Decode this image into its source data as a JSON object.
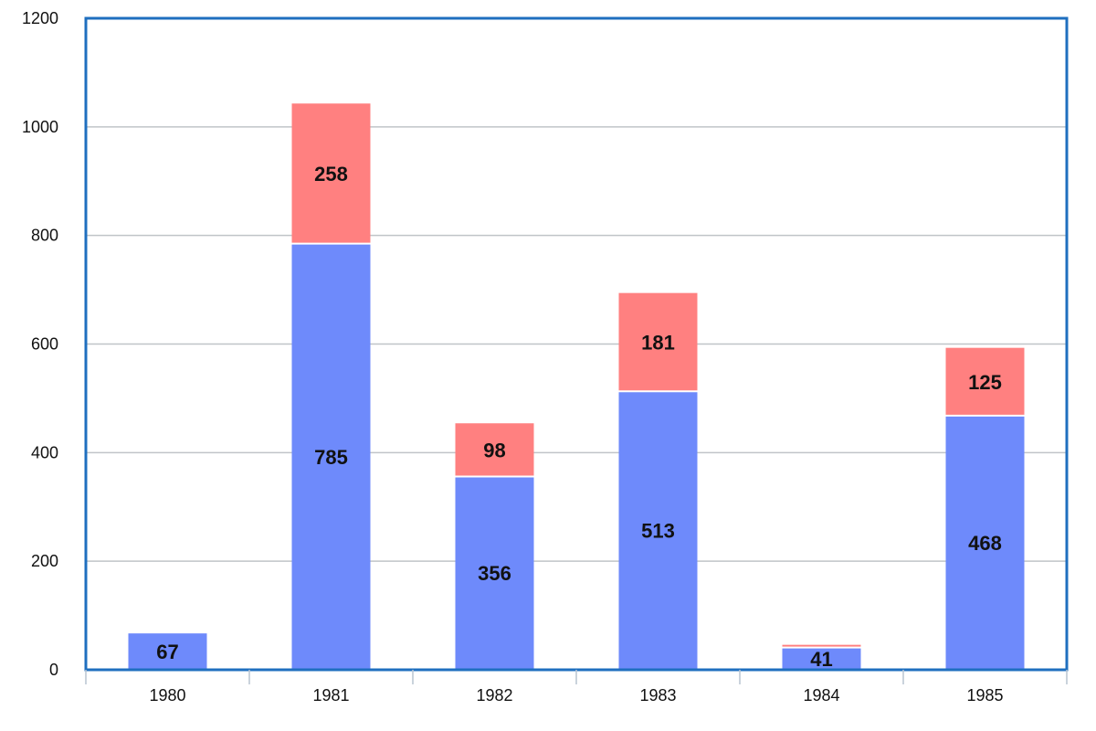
{
  "chart_data": {
    "type": "bar",
    "stacked": true,
    "categories": [
      "1980",
      "1981",
      "1982",
      "1983",
      "1984",
      "1985"
    ],
    "series": [
      {
        "values": [
          67,
          785,
          356,
          513,
          41,
          468
        ],
        "color": "#6e8afb"
      },
      {
        "values": [
          0,
          258,
          98,
          181,
          5,
          125
        ],
        "color": "#ff8080"
      }
    ],
    "data_labels": [
      [
        "67",
        "785",
        "356",
        "513",
        "41",
        "468"
      ],
      [
        "",
        "258",
        "98",
        "181",
        "",
        "125"
      ]
    ],
    "title": "",
    "xlabel": "",
    "ylabel": "",
    "ylim": [
      0,
      1200
    ],
    "yticks": [
      "0",
      "200",
      "400",
      "600",
      "800",
      "1000",
      "1200"
    ],
    "grid": true,
    "legend": "none",
    "frame_color": "#1f6fbf",
    "grid_color": "#c0c4c8"
  }
}
